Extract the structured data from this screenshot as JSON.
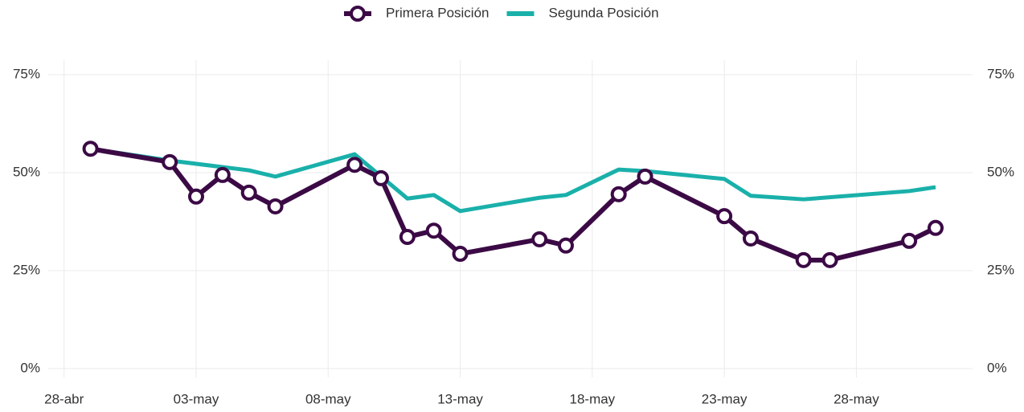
{
  "chart_data": {
    "type": "line",
    "xlim": [
      -0.6,
      34.4
    ],
    "xticks": [
      {
        "value": 0,
        "label": "28-abr"
      },
      {
        "value": 5,
        "label": "03-may"
      },
      {
        "value": 10,
        "label": "08-may"
      },
      {
        "value": 15,
        "label": "13-may"
      },
      {
        "value": 20,
        "label": "18-may"
      },
      {
        "value": 25,
        "label": "23-may"
      },
      {
        "value": 30,
        "label": "28-may"
      }
    ],
    "ylim": [
      0,
      75
    ],
    "yticks": [
      {
        "value": 0,
        "label": "0%"
      },
      {
        "value": 25,
        "label": "25%"
      },
      {
        "value": 50,
        "label": "50%"
      },
      {
        "value": 75,
        "label": "75%"
      }
    ],
    "y2lim": [
      0,
      75
    ],
    "y2ticks": [
      {
        "value": 0,
        "label": "0%"
      },
      {
        "value": 25,
        "label": "25%"
      },
      {
        "value": 50,
        "label": "50%"
      },
      {
        "value": 75,
        "label": "75%"
      }
    ],
    "grid": true,
    "legend": "top",
    "series": [
      {
        "name": "Primera Posición",
        "color": "#3b0a45",
        "markers": true,
        "x": [
          1,
          4,
          5,
          6,
          7,
          8,
          11,
          12,
          13,
          14,
          15,
          18,
          19,
          21,
          22,
          25,
          26,
          28,
          29,
          32,
          33
        ],
        "values": [
          56.1,
          52.7,
          43.9,
          49.4,
          44.9,
          41.4,
          52.0,
          48.6,
          33.6,
          35.2,
          29.3,
          33.0,
          31.4,
          44.5,
          49.0,
          38.9,
          33.2,
          27.7,
          27.7,
          32.6,
          35.9
        ]
      },
      {
        "name": "Segunda Posición",
        "color": "#1ab0aa",
        "markers": false,
        "x": [
          1,
          4,
          7,
          8,
          11,
          13,
          14,
          15,
          18,
          19,
          21,
          22,
          25,
          26,
          28,
          32,
          33
        ],
        "values": [
          56.1,
          53.1,
          50.6,
          49.0,
          54.7,
          43.4,
          44.3,
          40.2,
          43.6,
          44.3,
          50.8,
          50.4,
          48.4,
          44.1,
          43.2,
          45.3,
          46.3
        ]
      }
    ]
  }
}
